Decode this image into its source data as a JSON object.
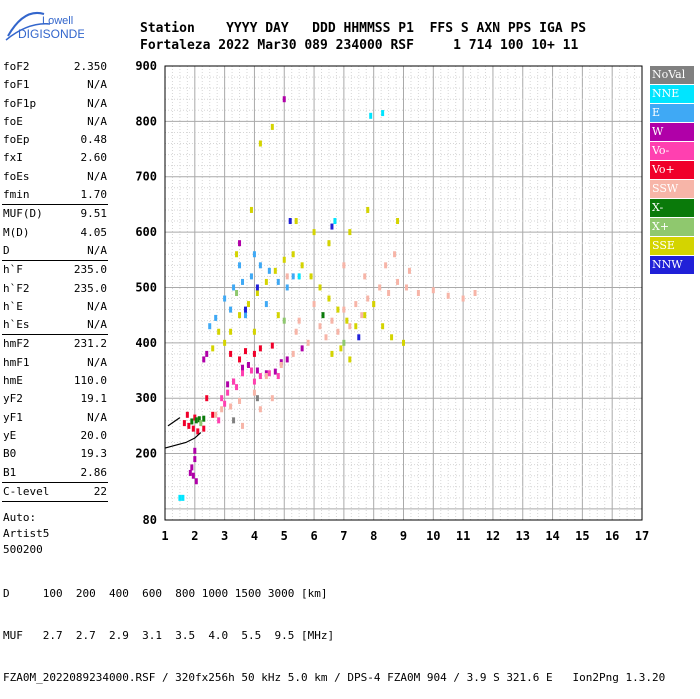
{
  "logo": {
    "line1": "Lowell",
    "line2": "DIGISONDE"
  },
  "header": {
    "line1": "Station    YYYY DAY   DDD HHMMSS P1  FFS S AXN PPS IGA PS",
    "line2": "Fortaleza 2022 Mar30 089 234000 RSF     1 714 100 10+ 11"
  },
  "params": {
    "group1": [
      {
        "name": "foF2",
        "value": "2.350"
      },
      {
        "name": "foF1",
        "value": "N/A"
      },
      {
        "name": "foF1p",
        "value": "N/A"
      },
      {
        "name": "foE",
        "value": "N/A"
      },
      {
        "name": "foEp",
        "value": "0.48"
      },
      {
        "name": "fxI",
        "value": "2.60"
      },
      {
        "name": "foEs",
        "value": "N/A"
      },
      {
        "name": "fmin",
        "value": "1.70"
      }
    ],
    "group2": [
      {
        "name": "MUF(D)",
        "value": "9.51"
      },
      {
        "name": "M(D)",
        "value": "4.05"
      },
      {
        "name": "D",
        "value": "N/A"
      }
    ],
    "group3": [
      {
        "name": "h`F",
        "value": "235.0"
      },
      {
        "name": "h`F2",
        "value": "235.0"
      },
      {
        "name": "h`E",
        "value": "N/A"
      },
      {
        "name": "h`Es",
        "value": "N/A"
      }
    ],
    "group4": [
      {
        "name": "hmF2",
        "value": "231.2"
      },
      {
        "name": "hmF1",
        "value": "N/A"
      },
      {
        "name": "hmE",
        "value": "110.0"
      },
      {
        "name": "yF2",
        "value": "19.1"
      },
      {
        "name": "yF1",
        "value": "N/A"
      },
      {
        "name": "yE",
        "value": "20.0"
      },
      {
        "name": "B0",
        "value": "19.3"
      },
      {
        "name": "B1",
        "value": "2.86"
      }
    ],
    "group5": [
      {
        "name": "C-level",
        "value": "22"
      }
    ],
    "auto": [
      "Auto:",
      "Artist5",
      "500200"
    ]
  },
  "legend": [
    {
      "label": "NoVal",
      "color": "#808080"
    },
    {
      "label": "NNE",
      "color": "#00e5ff"
    },
    {
      "label": "E",
      "color": "#3fa9f5"
    },
    {
      "label": "W",
      "color": "#b000a8"
    },
    {
      "label": "Vo-",
      "color": "#ff40b0"
    },
    {
      "label": "Vo+",
      "color": "#f0002a"
    },
    {
      "label": "SSW",
      "color": "#f7b5a8"
    },
    {
      "label": "X-",
      "color": "#0a7a0a"
    },
    {
      "label": "X+",
      "color": "#8fc86e"
    },
    {
      "label": "SSE",
      "color": "#d4d400"
    },
    {
      "label": "NNW",
      "color": "#2020d8"
    }
  ],
  "footer": {
    "d_label": "D",
    "d_values": "100  200  400  600  800 1000 1500 3000 [km]",
    "muf_label": "MUF",
    "muf_values": "2.7  2.7  2.9  3.1  3.5  4.0  5.5  9.5 [MHz]",
    "file_line": "FZA0M_2022089234000.RSF / 320fx256h 50 kHz 5.0 km / DPS-4 FZA0M 904 / 3.9 S 321.6 E   Ion2Png 1.3.20"
  },
  "chart_data": {
    "type": "scatter",
    "xlim": [
      1,
      17
    ],
    "ylim": [
      80,
      900
    ],
    "x_ticks": [
      1,
      2,
      3,
      4,
      5,
      6,
      7,
      8,
      9,
      10,
      11,
      12,
      13,
      14,
      15,
      16,
      17
    ],
    "y_ticks": [
      80,
      200,
      300,
      400,
      500,
      600,
      700,
      800,
      900
    ],
    "grid": true,
    "legend_position": "right",
    "series": [
      {
        "name": "W",
        "color": "#b000a8",
        "points": [
          [
            1.95,
            160
          ],
          [
            1.9,
            175
          ],
          [
            2.0,
            190
          ],
          [
            2.05,
            150
          ],
          [
            1.85,
            165
          ],
          [
            2.0,
            205
          ],
          [
            2.3,
            370
          ],
          [
            2.4,
            380
          ],
          [
            3.6,
            355
          ],
          [
            3.8,
            360
          ],
          [
            4.1,
            350
          ],
          [
            4.4,
            345
          ],
          [
            4.7,
            348
          ],
          [
            5.1,
            370
          ],
          [
            5.6,
            390
          ],
          [
            3.1,
            325
          ],
          [
            3.3,
            330
          ],
          [
            4.9,
            365
          ],
          [
            5.0,
            840
          ],
          [
            3.5,
            580
          ]
        ]
      },
      {
        "name": "Vo-",
        "color": "#ff40b0",
        "points": [
          [
            2.9,
            300
          ],
          [
            3.1,
            310
          ],
          [
            3.3,
            330
          ],
          [
            3.6,
            345
          ],
          [
            3.9,
            350
          ],
          [
            4.2,
            340
          ],
          [
            4.5,
            345
          ],
          [
            4.8,
            340
          ],
          [
            3.4,
            320
          ],
          [
            4.0,
            330
          ],
          [
            3.0,
            290
          ],
          [
            2.8,
            260
          ]
        ]
      },
      {
        "name": "Vo+",
        "color": "#f0002a",
        "points": [
          [
            1.65,
            255
          ],
          [
            1.8,
            250
          ],
          [
            1.95,
            245
          ],
          [
            2.1,
            240
          ],
          [
            2.3,
            245
          ],
          [
            1.75,
            270
          ],
          [
            2.0,
            265
          ],
          [
            2.4,
            300
          ],
          [
            3.2,
            380
          ],
          [
            3.7,
            385
          ],
          [
            4.2,
            390
          ],
          [
            4.6,
            395
          ],
          [
            3.5,
            370
          ],
          [
            4.0,
            380
          ],
          [
            2.6,
            270
          ]
        ]
      },
      {
        "name": "SSW",
        "color": "#f7b5a8",
        "points": [
          [
            2.7,
            270
          ],
          [
            2.9,
            280
          ],
          [
            3.2,
            285
          ],
          [
            3.5,
            295
          ],
          [
            4.0,
            310
          ],
          [
            4.4,
            340
          ],
          [
            4.9,
            360
          ],
          [
            5.3,
            380
          ],
          [
            5.8,
            400
          ],
          [
            6.2,
            430
          ],
          [
            6.6,
            440
          ],
          [
            7.0,
            460
          ],
          [
            7.4,
            470
          ],
          [
            7.8,
            480
          ],
          [
            8.2,
            500
          ],
          [
            8.5,
            490
          ],
          [
            8.8,
            510
          ],
          [
            9.1,
            500
          ],
          [
            9.5,
            490
          ],
          [
            10.0,
            495
          ],
          [
            10.5,
            485
          ],
          [
            11.0,
            480
          ],
          [
            11.4,
            490
          ],
          [
            5.5,
            440
          ],
          [
            6.0,
            470
          ],
          [
            6.4,
            410
          ],
          [
            6.8,
            420
          ],
          [
            7.2,
            430
          ],
          [
            7.6,
            450
          ],
          [
            8.0,
            470
          ],
          [
            8.4,
            540
          ],
          [
            8.7,
            560
          ],
          [
            9.2,
            530
          ],
          [
            5.1,
            520
          ],
          [
            5.4,
            420
          ],
          [
            3.6,
            250
          ],
          [
            4.2,
            280
          ],
          [
            4.6,
            300
          ],
          [
            7.0,
            540
          ],
          [
            7.7,
            520
          ]
        ]
      },
      {
        "name": "SSE",
        "color": "#d4d400",
        "points": [
          [
            3.0,
            400
          ],
          [
            3.2,
            420
          ],
          [
            3.5,
            450
          ],
          [
            3.8,
            470
          ],
          [
            4.1,
            490
          ],
          [
            4.4,
            510
          ],
          [
            4.7,
            530
          ],
          [
            5.0,
            550
          ],
          [
            5.3,
            560
          ],
          [
            5.6,
            540
          ],
          [
            5.9,
            520
          ],
          [
            6.2,
            500
          ],
          [
            6.5,
            480
          ],
          [
            6.8,
            460
          ],
          [
            7.1,
            440
          ],
          [
            7.4,
            430
          ],
          [
            7.7,
            450
          ],
          [
            8.0,
            470
          ],
          [
            8.3,
            430
          ],
          [
            8.6,
            410
          ],
          [
            9.0,
            400
          ],
          [
            6.6,
            380
          ],
          [
            6.9,
            390
          ],
          [
            7.2,
            370
          ],
          [
            4.2,
            760
          ],
          [
            4.6,
            790
          ],
          [
            3.9,
            640
          ],
          [
            5.4,
            620
          ],
          [
            6.0,
            600
          ],
          [
            6.5,
            580
          ],
          [
            7.2,
            600
          ],
          [
            7.8,
            640
          ],
          [
            8.8,
            620
          ],
          [
            3.4,
            560
          ],
          [
            2.8,
            420
          ],
          [
            2.6,
            390
          ],
          [
            4.0,
            420
          ],
          [
            4.8,
            450
          ]
        ]
      },
      {
        "name": "E",
        "color": "#3fa9f5",
        "points": [
          [
            3.0,
            480
          ],
          [
            3.3,
            500
          ],
          [
            3.6,
            510
          ],
          [
            3.9,
            520
          ],
          [
            4.2,
            540
          ],
          [
            4.5,
            530
          ],
          [
            4.8,
            510
          ],
          [
            5.1,
            500
          ],
          [
            3.2,
            460
          ],
          [
            3.7,
            450
          ],
          [
            4.4,
            470
          ],
          [
            2.7,
            445
          ],
          [
            2.5,
            430
          ],
          [
            4.0,
            560
          ],
          [
            3.5,
            540
          ],
          [
            5.3,
            520
          ]
        ]
      },
      {
        "name": "NNE",
        "color": "#00e5ff",
        "points": [
          [
            1.5,
            120
          ],
          [
            1.6,
            120
          ],
          [
            7.9,
            810
          ],
          [
            8.3,
            815
          ],
          [
            5.5,
            520
          ],
          [
            6.7,
            620
          ]
        ]
      },
      {
        "name": "X-",
        "color": "#0a7a0a",
        "points": [
          [
            2.05,
            260
          ],
          [
            2.15,
            262
          ],
          [
            1.9,
            258
          ],
          [
            2.3,
            263
          ],
          [
            6.3,
            450
          ]
        ]
      },
      {
        "name": "X+",
        "color": "#8fc86e",
        "points": [
          [
            2.2,
            255
          ],
          [
            3.4,
            490
          ],
          [
            5.0,
            440
          ],
          [
            7.0,
            400
          ]
        ]
      },
      {
        "name": "NNW",
        "color": "#2020d8",
        "points": [
          [
            5.2,
            620
          ],
          [
            4.1,
            500
          ],
          [
            6.6,
            610
          ],
          [
            3.7,
            460
          ],
          [
            7.5,
            410
          ]
        ]
      },
      {
        "name": "NoVal",
        "color": "#808080",
        "points": [
          [
            3.3,
            260
          ],
          [
            4.1,
            300
          ]
        ]
      }
    ],
    "profile_line": [
      [
        1.0,
        210
      ],
      [
        1.7,
        220
      ],
      [
        2.0,
        228
      ],
      [
        2.2,
        238
      ]
    ],
    "profile_line2": [
      [
        1.1,
        250
      ],
      [
        1.5,
        265
      ]
    ]
  }
}
